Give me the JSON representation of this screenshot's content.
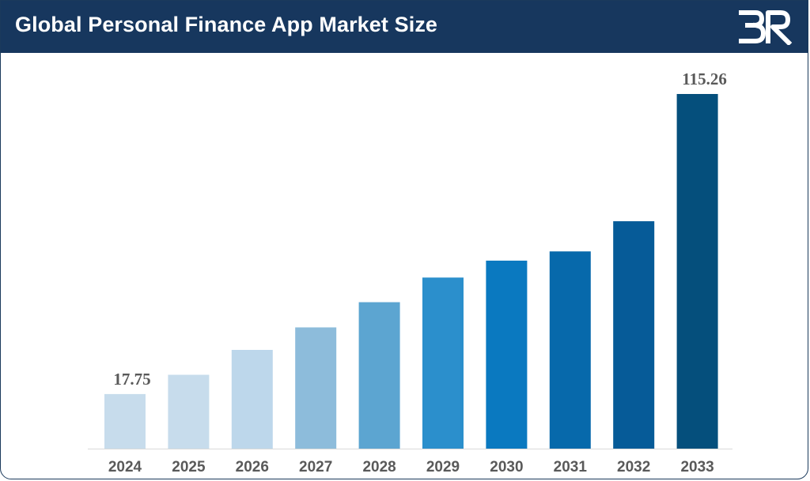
{
  "header": {
    "title": "Global Personal Finance App Market Size",
    "logo_icon": "brand-logo-icon"
  },
  "chart_data": {
    "type": "bar",
    "title": "Global Personal Finance App Market Size",
    "xlabel": "",
    "ylabel": "",
    "categories": [
      "2024",
      "2025",
      "2026",
      "2027",
      "2028",
      "2029",
      "2030",
      "2031",
      "2032",
      "2033"
    ],
    "values": [
      17.75,
      24.0,
      32.1,
      39.4,
      47.6,
      55.6,
      61.1,
      64.1,
      73.9,
      115.26
    ],
    "data_labels": [
      "17.75",
      "",
      "",
      "",
      "",
      "",
      "",
      "",
      "",
      "115.26"
    ],
    "colors": [
      "#c7dcec",
      "#c7dcec",
      "#bdd7eb",
      "#8dbcdb",
      "#5ca5d1",
      "#2b8fcc",
      "#0a79c0",
      "#0769ab",
      "#065b98",
      "#054f7c"
    ],
    "ylim": [
      0,
      120
    ],
    "grid": false,
    "legend": "none"
  }
}
